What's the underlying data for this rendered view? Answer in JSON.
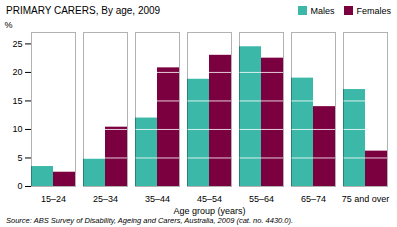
{
  "chart_data": {
    "type": "bar",
    "title": "PRIMARY CARERS,  By age,  2009",
    "categories": [
      "15–24",
      "25–34",
      "35–44",
      "45–54",
      "55–64",
      "65–74",
      "75 and over"
    ],
    "series": [
      {
        "name": "Males",
        "color": "#3CB8A8",
        "values": [
          3.5,
          4.8,
          12.0,
          18.8,
          24.5,
          19.0,
          17.0
        ]
      },
      {
        "name": "Females",
        "color": "#7B0040",
        "values": [
          2.5,
          10.4,
          20.8,
          23.0,
          22.5,
          14.0,
          6.2
        ]
      }
    ],
    "xlabel": "Age group (years)",
    "ylabel": "%",
    "ylim": [
      0,
      27
    ],
    "yticks": [
      0,
      5,
      10,
      15,
      20,
      25
    ],
    "grid": true,
    "legend": "upper right",
    "source": "Source: ABS Survey of Disability, Ageing and Carers, Australia, 2009 (cat.  no.  4430.0)."
  }
}
